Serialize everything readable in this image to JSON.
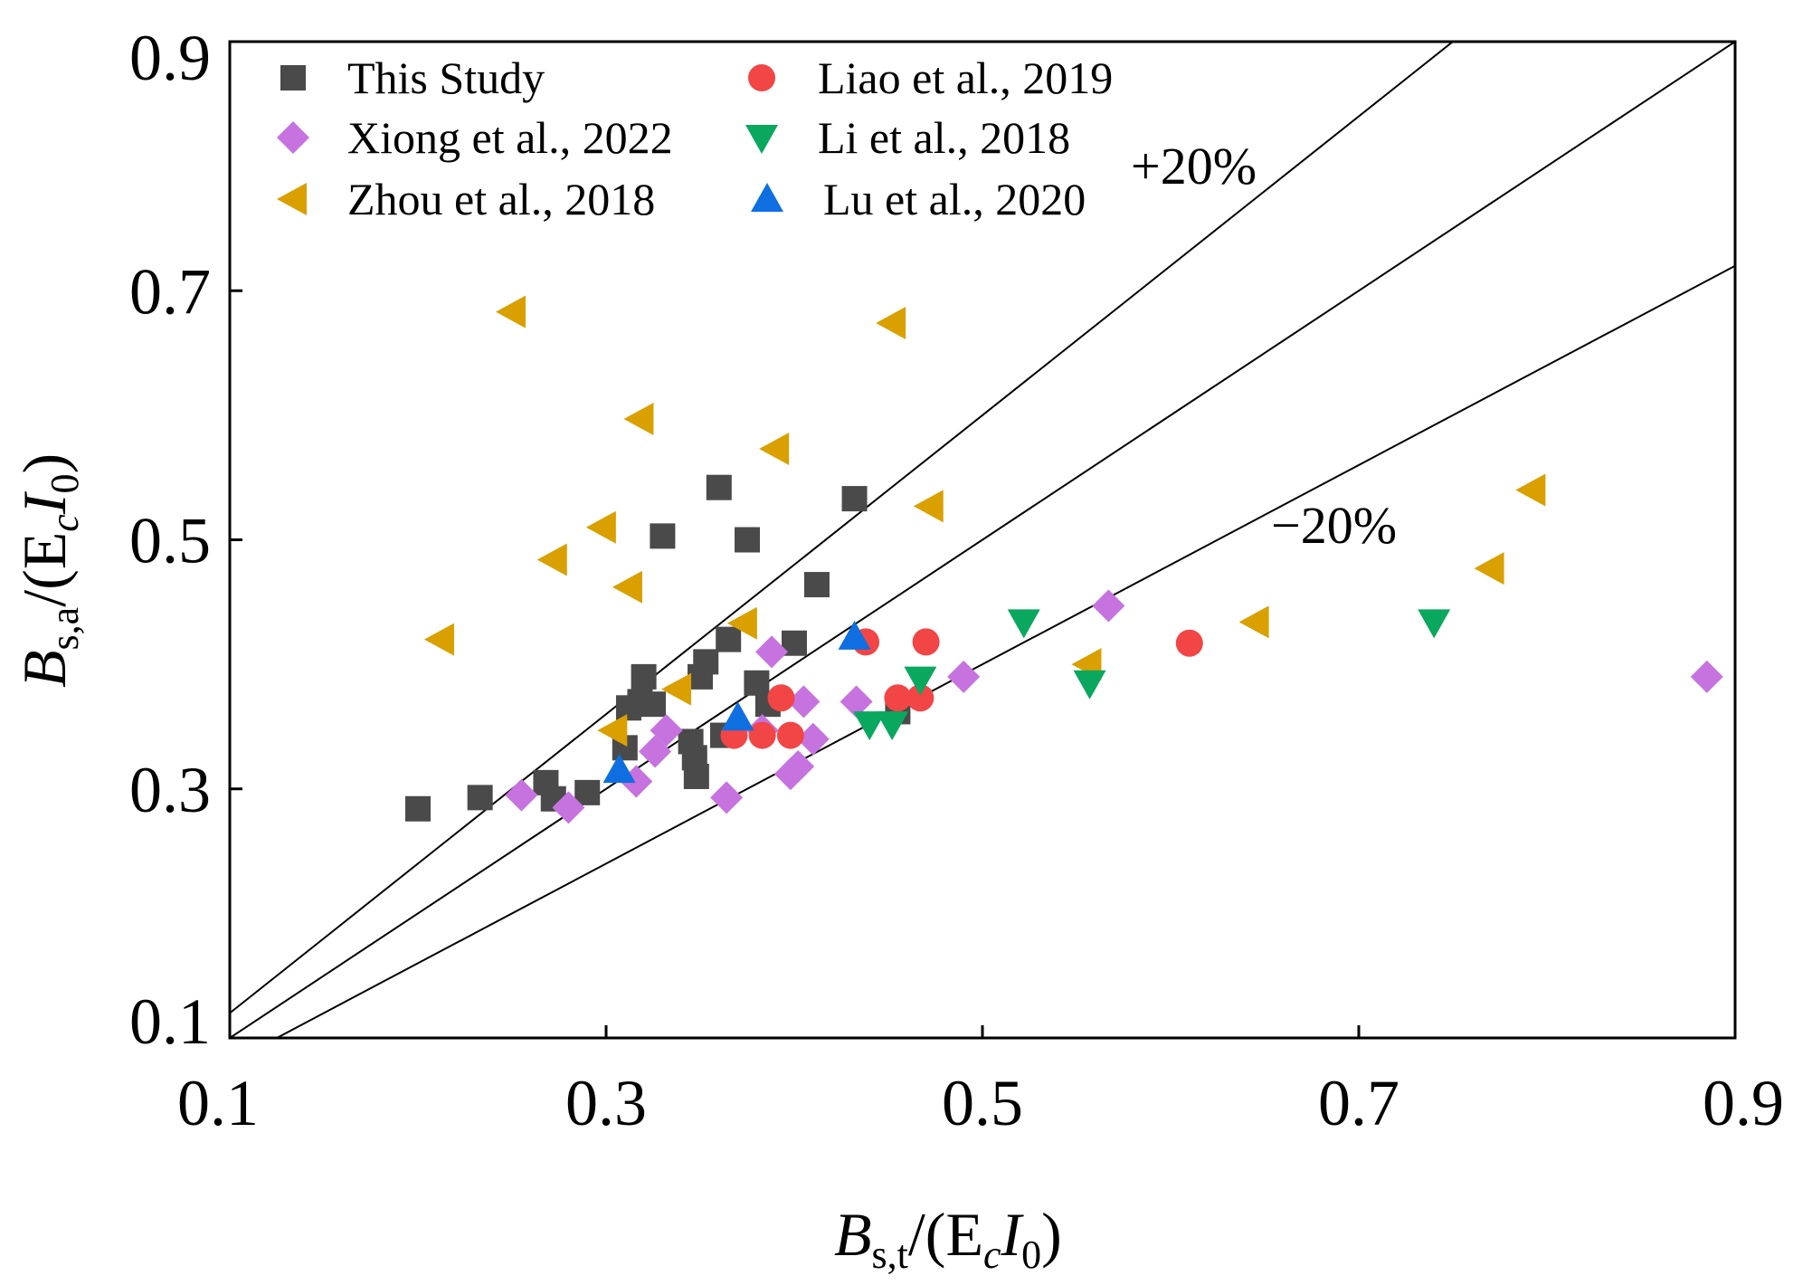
{
  "chart_data": {
    "type": "scatter",
    "xlabel": {
      "main": "B",
      "sub": "s,t",
      "rest": "/(E",
      "sub2": "c",
      "mid": "I",
      "sub3": "0",
      "close": ")"
    },
    "ylabel": {
      "main": "B",
      "sub": "s,a",
      "rest": "/(E",
      "sub2": "c",
      "mid": "I",
      "sub3": "0",
      "close": ")"
    },
    "xlim": [
      0.1,
      0.9
    ],
    "ylim": [
      0.1,
      0.9
    ],
    "xticks": [
      "0.1",
      "0.3",
      "0.5",
      "0.7",
      "0.9"
    ],
    "yticks": [
      "0.1",
      "0.3",
      "0.5",
      "0.7",
      "0.9"
    ],
    "grid": false,
    "legend_position": "top-left",
    "reference_lines": [
      {
        "name": "plus-20",
        "slope": 1.2,
        "label": "+20%"
      },
      {
        "name": "equality",
        "slope": 1.0,
        "label": ""
      },
      {
        "name": "minus-20",
        "slope": 0.8,
        "label": "−20%"
      }
    ],
    "series": [
      {
        "name": "This Study",
        "marker": "square",
        "color": "#4a4a4a",
        "points": [
          [
            0.2,
            0.284
          ],
          [
            0.233,
            0.293
          ],
          [
            0.268,
            0.305
          ],
          [
            0.272,
            0.292
          ],
          [
            0.29,
            0.297
          ],
          [
            0.31,
            0.333
          ],
          [
            0.312,
            0.365
          ],
          [
            0.318,
            0.37
          ],
          [
            0.32,
            0.39
          ],
          [
            0.325,
            0.368
          ],
          [
            0.33,
            0.503
          ],
          [
            0.345,
            0.338
          ],
          [
            0.347,
            0.325
          ],
          [
            0.348,
            0.31
          ],
          [
            0.35,
            0.39
          ],
          [
            0.353,
            0.402
          ],
          [
            0.36,
            0.542
          ],
          [
            0.362,
            0.343
          ],
          [
            0.365,
            0.42
          ],
          [
            0.375,
            0.5
          ],
          [
            0.38,
            0.385
          ],
          [
            0.386,
            0.368
          ],
          [
            0.4,
            0.417
          ],
          [
            0.412,
            0.464
          ],
          [
            0.432,
            0.533
          ],
          [
            0.455,
            0.362
          ]
        ]
      },
      {
        "name": "Xiong et al., 2022",
        "marker": "diamond",
        "color": "#c673e0",
        "points": [
          [
            0.255,
            0.295
          ],
          [
            0.28,
            0.285
          ],
          [
            0.316,
            0.306
          ],
          [
            0.326,
            0.33
          ],
          [
            0.332,
            0.347
          ],
          [
            0.364,
            0.293
          ],
          [
            0.383,
            0.347
          ],
          [
            0.388,
            0.41
          ],
          [
            0.398,
            0.312
          ],
          [
            0.402,
            0.318
          ],
          [
            0.405,
            0.37
          ],
          [
            0.41,
            0.34
          ],
          [
            0.433,
            0.37
          ],
          [
            0.49,
            0.39
          ],
          [
            0.567,
            0.447
          ],
          [
            0.885,
            0.39
          ]
        ]
      },
      {
        "name": "Zhou et al., 2018",
        "marker": "triangle-left",
        "color": "#d9a000",
        "points": [
          [
            0.212,
            0.42
          ],
          [
            0.25,
            0.683
          ],
          [
            0.272,
            0.484
          ],
          [
            0.298,
            0.51
          ],
          [
            0.304,
            0.347
          ],
          [
            0.312,
            0.462
          ],
          [
            0.318,
            0.597
          ],
          [
            0.338,
            0.38
          ],
          [
            0.373,
            0.433
          ],
          [
            0.39,
            0.573
          ],
          [
            0.452,
            0.674
          ],
          [
            0.472,
            0.527
          ],
          [
            0.556,
            0.4
          ],
          [
            0.645,
            0.434
          ],
          [
            0.77,
            0.477
          ],
          [
            0.792,
            0.54
          ]
        ]
      },
      {
        "name": "Liao et al., 2019",
        "marker": "circle",
        "color": "#f24545",
        "points": [
          [
            0.368,
            0.343
          ],
          [
            0.383,
            0.343
          ],
          [
            0.393,
            0.373
          ],
          [
            0.398,
            0.343
          ],
          [
            0.438,
            0.418
          ],
          [
            0.455,
            0.373
          ],
          [
            0.467,
            0.373
          ],
          [
            0.47,
            0.418
          ],
          [
            0.61,
            0.417
          ]
        ]
      },
      {
        "name": "Li et al., 2018",
        "marker": "triangle-down",
        "color": "#0aa85e",
        "points": [
          [
            0.44,
            0.352
          ],
          [
            0.452,
            0.352
          ],
          [
            0.467,
            0.388
          ],
          [
            0.522,
            0.434
          ],
          [
            0.557,
            0.385
          ],
          [
            0.74,
            0.434
          ]
        ]
      },
      {
        "name": "Lu et al., 2020",
        "marker": "triangle-up",
        "color": "#0f6fe0",
        "points": [
          [
            0.307,
            0.315
          ],
          [
            0.37,
            0.357
          ],
          [
            0.432,
            0.422
          ]
        ]
      }
    ]
  }
}
